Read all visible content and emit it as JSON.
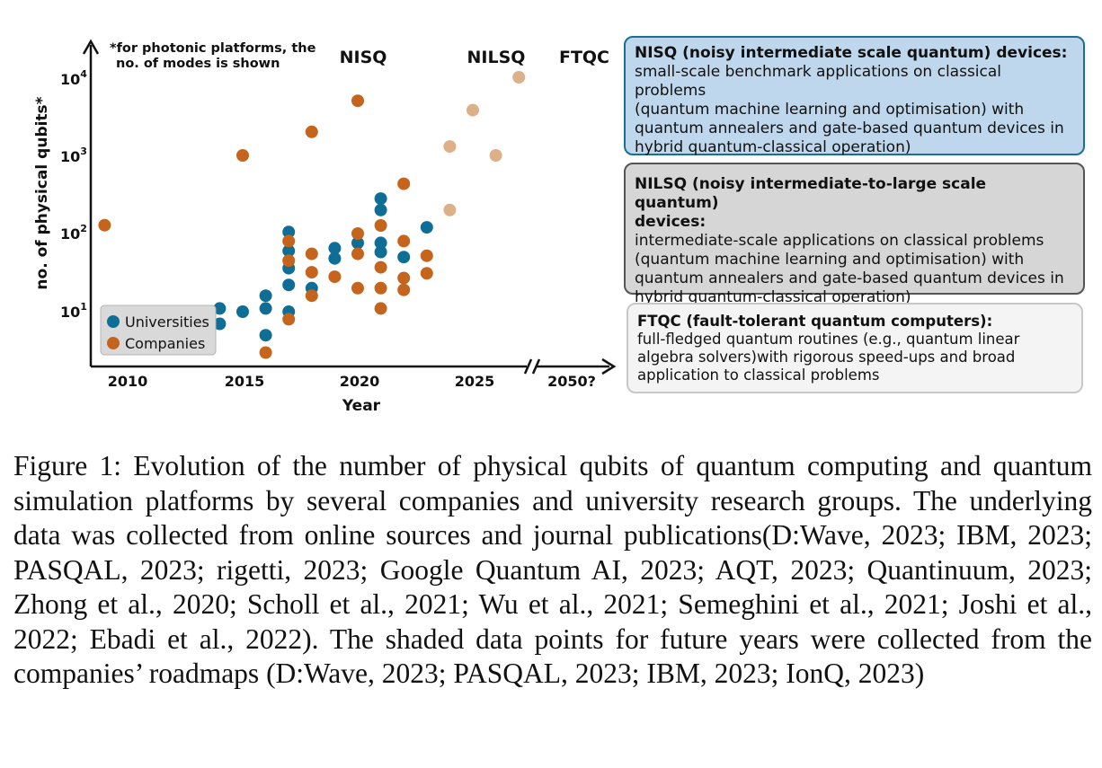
{
  "chart_data": {
    "type": "scatter",
    "xlabel": "Year",
    "ylabel": "no. of physical qubits*",
    "yscale": "log",
    "x_ticks": [
      "2010",
      "2015",
      "2020",
      "2025",
      "2050?"
    ],
    "y_ticks": [
      {
        "base": "10",
        "exp": "1",
        "value": 10
      },
      {
        "base": "10",
        "exp": "2",
        "value": 100
      },
      {
        "base": "10",
        "exp": "3",
        "value": 1000
      },
      {
        "base": "10",
        "exp": "4",
        "value": 10000
      }
    ],
    "note": [
      "*for photonic platforms, the",
      "no. of modes is shown"
    ],
    "eras": [
      {
        "label": "NISQ",
        "color": "#0f6e96"
      },
      {
        "label": "NILSQ",
        "color": "#555555"
      },
      {
        "label": "FTQC",
        "color": "#b9b9b9"
      }
    ],
    "legend": {
      "position": "bottom-left",
      "entries": [
        "Universities",
        "Companies"
      ]
    },
    "series": [
      {
        "name": "Universities",
        "color": "#0f6e96",
        "points": [
          [
            2014,
            11
          ],
          [
            2014,
            7
          ],
          [
            2015,
            10
          ],
          [
            2016,
            16
          ],
          [
            2016,
            11
          ],
          [
            2016,
            5
          ],
          [
            2017,
            105
          ],
          [
            2017,
            60
          ],
          [
            2017,
            36
          ],
          [
            2017,
            22
          ],
          [
            2017,
            10
          ],
          [
            2018,
            20
          ],
          [
            2019,
            65
          ],
          [
            2019,
            48
          ],
          [
            2020,
            76
          ],
          [
            2021,
            280
          ],
          [
            2021,
            200
          ],
          [
            2021,
            76
          ],
          [
            2021,
            58
          ],
          [
            2022,
            50
          ],
          [
            2023,
            120
          ]
        ]
      },
      {
        "name": "Companies",
        "color": "#c5651d",
        "points": [
          [
            2009,
            128
          ],
          [
            2015,
            1000
          ],
          [
            2016,
            3
          ],
          [
            2017,
            80
          ],
          [
            2017,
            45
          ],
          [
            2017,
            8
          ],
          [
            2018,
            2000
          ],
          [
            2018,
            55
          ],
          [
            2018,
            32
          ],
          [
            2018,
            16
          ],
          [
            2019,
            28
          ],
          [
            2020,
            5000
          ],
          [
            2020,
            100
          ],
          [
            2020,
            55
          ],
          [
            2020,
            20
          ],
          [
            2021,
            127
          ],
          [
            2021,
            37
          ],
          [
            2021,
            20
          ],
          [
            2021,
            11
          ],
          [
            2022,
            433
          ],
          [
            2022,
            80
          ],
          [
            2022,
            27
          ],
          [
            2022,
            19
          ],
          [
            2023,
            52
          ],
          [
            2023,
            31
          ]
        ]
      },
      {
        "name": "Roadmaps",
        "color": "#dcb089",
        "points": [
          [
            2024,
            1300
          ],
          [
            2024,
            200
          ],
          [
            2025,
            3800
          ],
          [
            2026,
            1000
          ],
          [
            2027,
            10000
          ]
        ]
      }
    ]
  },
  "boxes": {
    "nisq": {
      "head": "NISQ (noisy intermediate scale quantum) devices:",
      "lines": [
        "small-scale benchmark applications on classical problems",
        "(quantum machine learning and optimisation) with",
        "quantum annealers and gate-based quantum devices in",
        "hybrid quantum-classical operation)"
      ]
    },
    "nilsq": {
      "head_lines": [
        "NILSQ (noisy intermediate-to-large scale quantum)",
        "devices:"
      ],
      "lines": [
        "intermediate-scale applications on classical problems",
        "(quantum machine learning and optimisation) with",
        "quantum annealers and gate-based quantum devices in",
        "hybrid quantum-classical operation)"
      ]
    },
    "ftqc": {
      "head": "FTQC (fault-tolerant quantum computers):",
      "lines": [
        "full-fledged quantum routines (e.g., quantum linear",
        "algebra solvers)with rigorous speed-ups and broad",
        "application to classical problems"
      ]
    }
  },
  "caption": "Figure 1: Evolution of the number of physical qubits of quantum computing and quantum simulation platforms by several companies and university research groups. The underlying data was collected from online sources and journal publications(D:Wave, 2023; IBM, 2023; PASQAL, 2023; rigetti, 2023; Google Quantum AI, 2023; AQT, 2023; Quantinuum, 2023; Zhong et al., 2020; Scholl et al., 2021; Wu et al., 2021; Semeghini et al., 2021; Joshi et al., 2022; Ebadi et al., 2022). The shaded data points for future years were collected from the companies’ roadmaps (D:Wave, 2023; PASQAL, 2023; IBM, 2023; IonQ, 2023)"
}
